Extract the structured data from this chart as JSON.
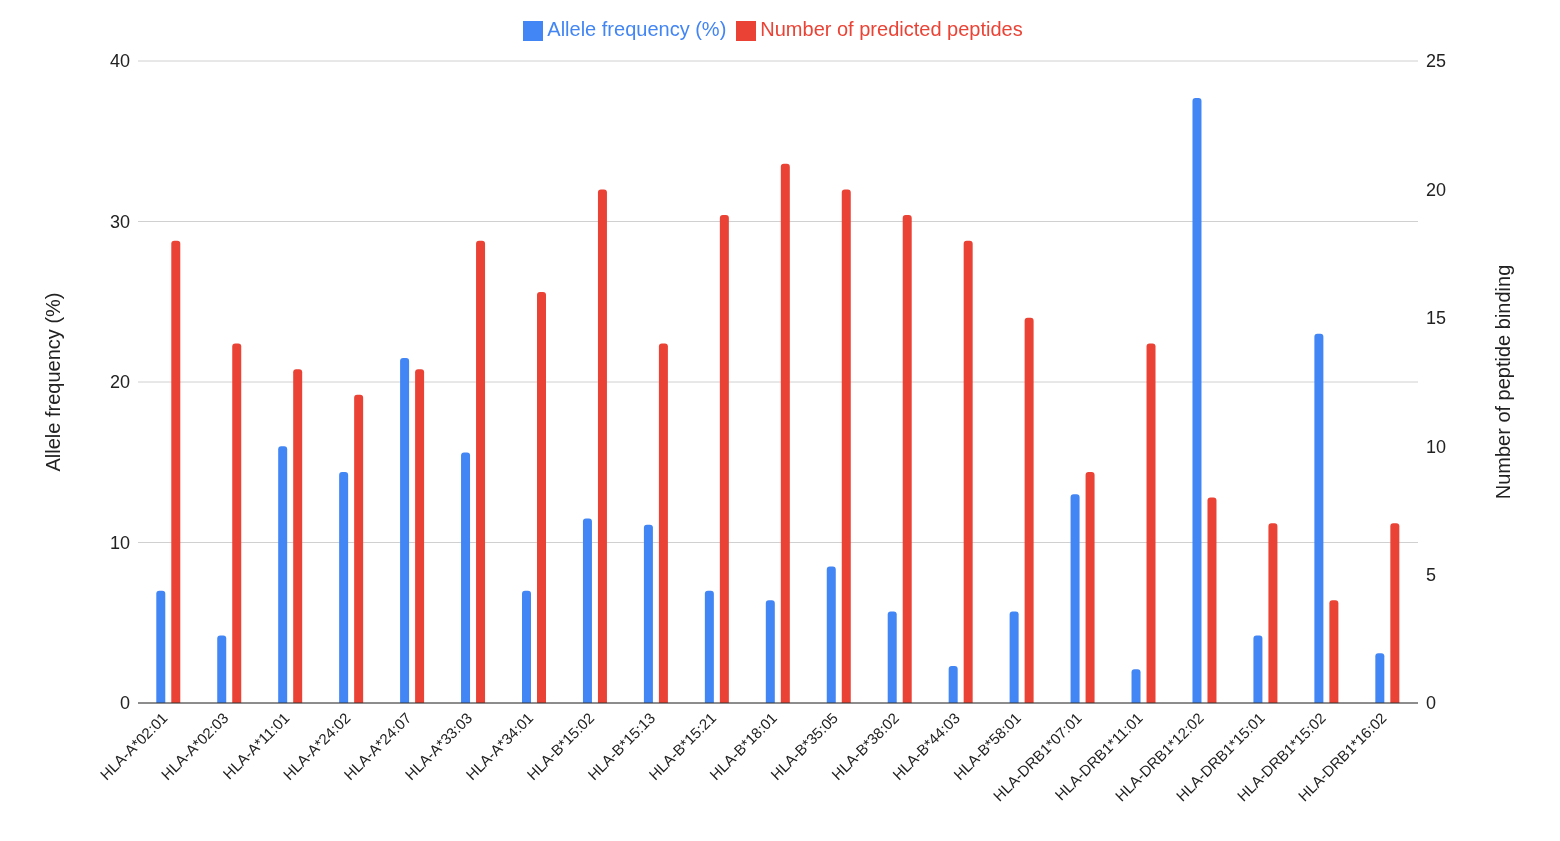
{
  "chart_data": {
    "type": "bar",
    "categories": [
      "HLA-A*02:01",
      "HLA-A*02:03",
      "HLA-A*11:01",
      "HLA-A*24:02",
      "HLA-A*24:07",
      "HLA-A*33:03",
      "HLA-A*34:01",
      "HLA-B*15:02",
      "HLA-B*15:13",
      "HLA-B*15:21",
      "HLA-B*18:01",
      "HLA-B*35:05",
      "HLA-B*38:02",
      "HLA-B*44:03",
      "HLA-B*58:01",
      "HLA-DRB1*07:01",
      "HLA-DRB1*11:01",
      "HLA-DRB1*12:02",
      "HLA-DRB1*15:01",
      "HLA-DRB1*15:02",
      "HLA-DRB1*16:02"
    ],
    "series": [
      {
        "name": "Allele frequency (%)",
        "color": "#4285f4",
        "values": [
          7,
          4.2,
          16,
          14.4,
          21.5,
          15.6,
          7,
          11.5,
          11.1,
          7,
          6.4,
          8.5,
          5.7,
          2.3,
          5.7,
          13,
          2.1,
          37.7,
          4.2,
          23,
          3.1
        ]
      },
      {
        "name": "Number of predicted peptides",
        "color": "#ea4335",
        "axis": "y2",
        "values": [
          18,
          14,
          13,
          12,
          13,
          18,
          16,
          20,
          14,
          19,
          21,
          20,
          19,
          18,
          15,
          9,
          14,
          8,
          7,
          4,
          7
        ]
      }
    ],
    "ylabel": "Allele frequency (%)",
    "y2label": "Number of peptide binding",
    "ylim": [
      0,
      40
    ],
    "yticks": [
      0,
      10,
      20,
      30,
      40
    ],
    "y2lim": [
      0,
      25
    ],
    "y2ticks": [
      0,
      5,
      10,
      15,
      20,
      25
    ],
    "grid": "y",
    "legend": "top"
  }
}
